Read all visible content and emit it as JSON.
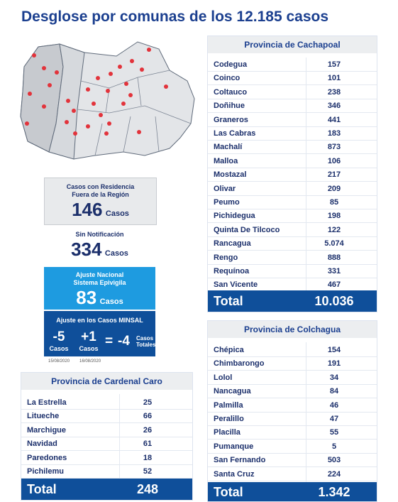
{
  "header": {
    "title": "Desglose por comunas de los 12.185 casos"
  },
  "residence_box": {
    "label_lines": [
      "Casos con Residencia",
      "Fuera de la Región"
    ],
    "value": "146",
    "unit": "Casos"
  },
  "no_notification_box": {
    "label": "Sin Notificación",
    "value": "334",
    "unit": "Casos"
  },
  "epivigila_box": {
    "label_lines": [
      "Ajuste Nacional",
      "Sistema Epivigila"
    ],
    "value": "83",
    "unit": "Casos"
  },
  "minsal_box": {
    "title": "Ajuste en los Casos MINSAL",
    "items": [
      {
        "value": "-5",
        "unit": "Casos",
        "date": "15/08/2020"
      },
      {
        "value": "+1",
        "unit": "Casos",
        "date": "16/08/2020"
      }
    ],
    "operator": "=",
    "result": "-4",
    "result_unit_lines": [
      "Casos",
      "Totales"
    ]
  },
  "cachapoal": {
    "title": "Provincia de Cachapoal",
    "rows": [
      [
        "Codegua",
        "157"
      ],
      [
        "Coinco",
        "101"
      ],
      [
        "Coltauco",
        "238"
      ],
      [
        "Doñihue",
        "346"
      ],
      [
        "Graneros",
        "441"
      ],
      [
        "Las Cabras",
        "183"
      ],
      [
        "Machalí",
        "873"
      ],
      [
        "Malloa",
        "106"
      ],
      [
        "Mostazal",
        "217"
      ],
      [
        "Olivar",
        "209"
      ],
      [
        "Peumo",
        "85"
      ],
      [
        "Pichidegua",
        "198"
      ],
      [
        "Quinta De Tilcoco",
        "122"
      ],
      [
        "Rancagua",
        "5.074"
      ],
      [
        "Rengo",
        "888"
      ],
      [
        "Requínoa",
        "331"
      ],
      [
        "San Vicente",
        "467"
      ]
    ],
    "total_label": "Total",
    "total": "10.036"
  },
  "colchagua": {
    "title": "Provincia de Colchagua",
    "rows": [
      [
        "Chépica",
        "154"
      ],
      [
        "Chimbarongo",
        "191"
      ],
      [
        "Lolol",
        "34"
      ],
      [
        "Nancagua",
        "84"
      ],
      [
        "Palmilla",
        "46"
      ],
      [
        "Peralillo",
        "47"
      ],
      [
        "Placilla",
        "55"
      ],
      [
        "Pumanque",
        "5"
      ],
      [
        "San Fernando",
        "503"
      ],
      [
        "Santa Cruz",
        "224"
      ]
    ],
    "total_label": "Total",
    "total": "1.342"
  },
  "cardenal_caro": {
    "title": "Provincia de Cardenal Caro",
    "rows": [
      [
        "La Estrella",
        "25"
      ],
      [
        "Litueche",
        "66"
      ],
      [
        "Marchigue",
        "26"
      ],
      [
        "Navidad",
        "61"
      ],
      [
        "Paredones",
        "18"
      ],
      [
        "Pichilemu",
        "52"
      ]
    ],
    "total_label": "Total",
    "total": "248"
  }
}
